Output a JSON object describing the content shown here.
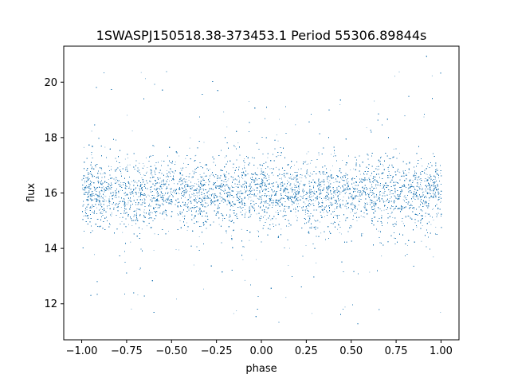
{
  "chart_data": {
    "type": "scatter",
    "title": "1SWASPJ150518.38-373453.1 Period 55306.89844s",
    "xlabel": "phase",
    "ylabel": "flux",
    "xlim": [
      -1.1,
      1.1
    ],
    "ylim": [
      10.7,
      21.3
    ],
    "xticks": [
      -1.0,
      -0.75,
      -0.5,
      -0.25,
      0.0,
      0.25,
      0.5,
      0.75,
      1.0
    ],
    "xtick_labels": [
      "−1.00",
      "−0.75",
      "−0.50",
      "−0.25",
      "0.00",
      "0.25",
      "0.50",
      "0.75",
      "1.00"
    ],
    "yticks": [
      12,
      14,
      16,
      18,
      20
    ],
    "ytick_labels": [
      "12",
      "14",
      "16",
      "18",
      "20"
    ],
    "grid": false,
    "legend": "none",
    "marker_color": "#1f77b4",
    "distribution": {
      "phase_range": [
        -1.0,
        1.0
      ],
      "flux_center": 16.0,
      "core_flux_range": [
        14.8,
        17.2
      ],
      "flux_range": [
        11.2,
        21.0
      ],
      "n_points_approx": 60000
    }
  }
}
